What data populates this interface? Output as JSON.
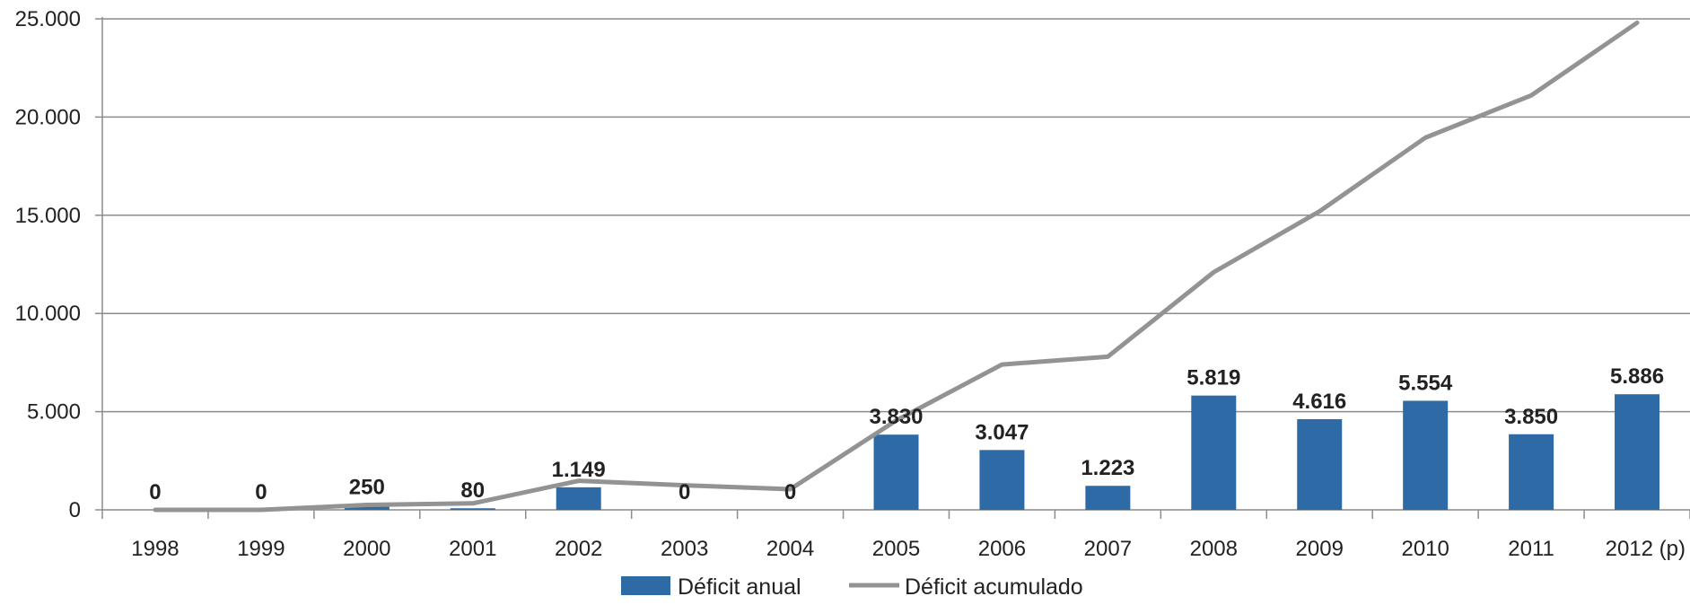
{
  "chart_data": {
    "type": "bar",
    "categories": [
      "1998",
      "1999",
      "2000",
      "2001",
      "2002",
      "2003",
      "2004",
      "2005",
      "2006",
      "2007",
      "2008",
      "2009",
      "2010",
      "2011",
      "2012 (p)"
    ],
    "series": [
      {
        "name": "Déficit anual",
        "type": "bar",
        "color": "#2e6aa6",
        "values": [
          0,
          0,
          250,
          80,
          1149,
          0,
          0,
          3830,
          3047,
          1223,
          5819,
          4616,
          5554,
          3850,
          5886
        ],
        "data_labels": [
          "0",
          "0",
          "250",
          "80",
          "1.149",
          "0",
          "0",
          "3.830",
          "3.047",
          "1.223",
          "5.819",
          "4.616",
          "5.554",
          "3.850",
          "5.886"
        ]
      },
      {
        "name": "Déficit acumulado",
        "type": "line",
        "color": "#939393",
        "values": [
          0,
          0,
          250,
          330,
          1479,
          1250,
          1050,
          4550,
          7400,
          7800,
          12100,
          15200,
          18950,
          21100,
          24800
        ]
      }
    ],
    "ylim": [
      0,
      25000
    ],
    "yticks": [
      0,
      5000,
      10000,
      15000,
      20000,
      25000
    ],
    "ytick_labels": [
      "0",
      "5.000",
      "10.000",
      "15.000",
      "20.000",
      "25.000"
    ],
    "grid": true,
    "legend_position": "bottom",
    "title": "",
    "xlabel": "",
    "ylabel": ""
  }
}
